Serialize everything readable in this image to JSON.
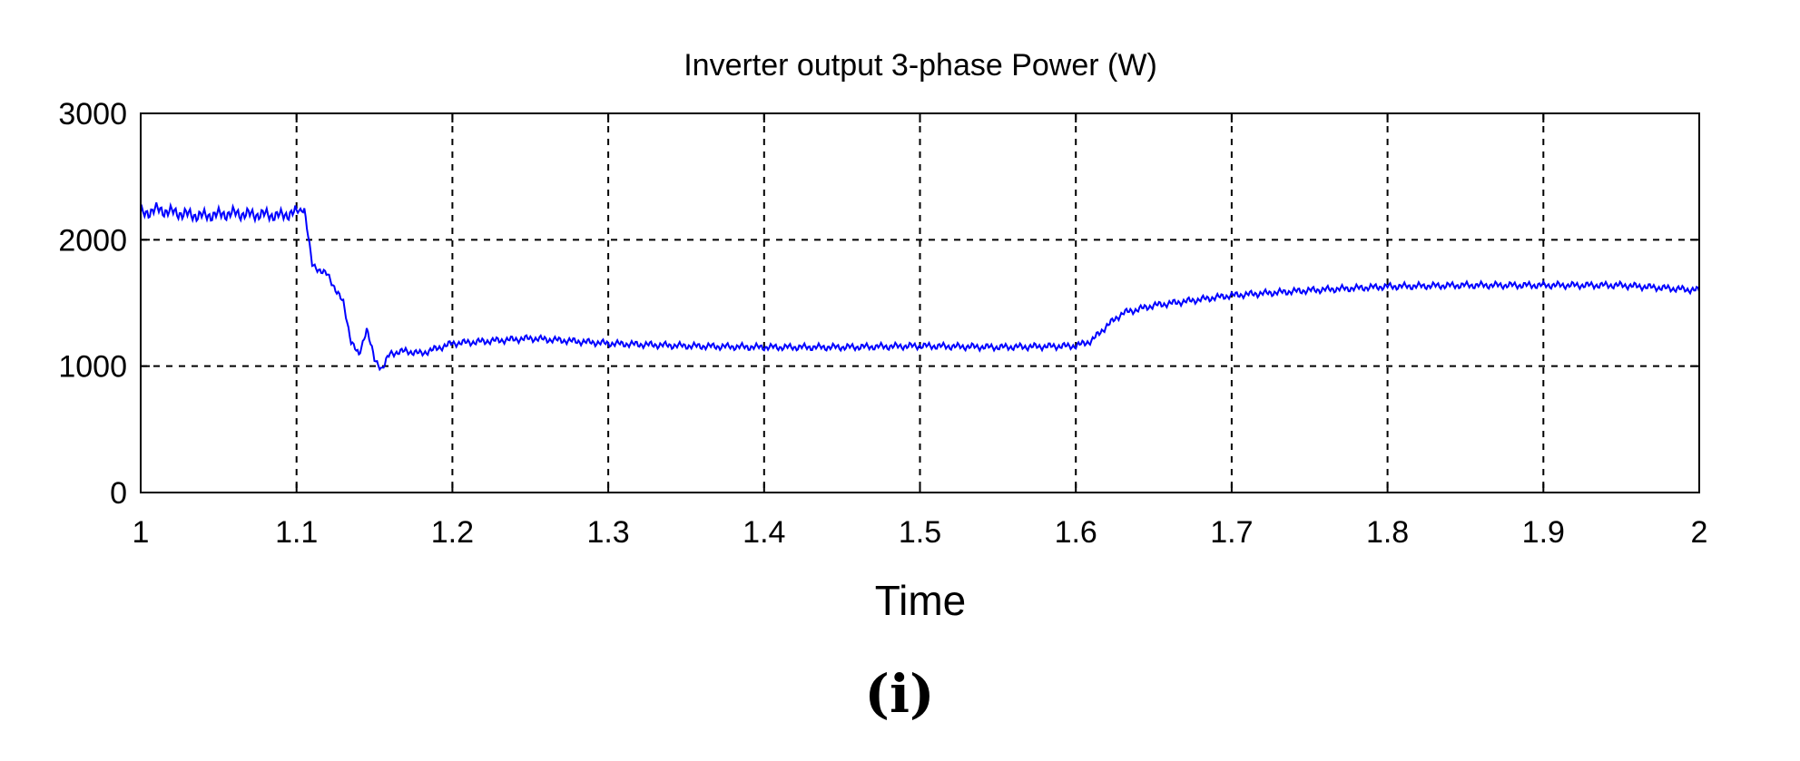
{
  "chart_data": {
    "type": "line",
    "title": "Inverter output 3-phase Power (W)",
    "xlabel": "Time",
    "ylabel": "",
    "panel_label": "(i)",
    "xlim": [
      1,
      2
    ],
    "ylim": [
      0,
      3000
    ],
    "xticks": [
      1,
      1.1,
      1.2,
      1.3,
      1.4,
      1.5,
      1.6,
      1.7,
      1.8,
      1.9,
      2
    ],
    "xtick_labels": [
      "1",
      "1.1",
      "1.2",
      "1.3",
      "1.4",
      "1.5",
      "1.6",
      "1.7",
      "1.8",
      "1.9",
      "2"
    ],
    "yticks": [
      0,
      1000,
      2000,
      3000
    ],
    "ytick_labels": [
      "0",
      "1000",
      "2000",
      "3000"
    ],
    "grid": true,
    "line_color": "#0000ff",
    "series": [
      {
        "x": [
          1.0,
          1.01,
          1.02,
          1.03,
          1.04,
          1.05,
          1.06,
          1.07,
          1.08,
          1.09,
          1.1,
          1.105,
          1.11,
          1.12,
          1.13,
          1.135,
          1.14,
          1.145,
          1.15,
          1.155,
          1.16,
          1.17,
          1.18,
          1.2,
          1.25,
          1.3,
          1.35,
          1.4,
          1.45,
          1.5,
          1.55,
          1.6,
          1.61,
          1.62,
          1.63,
          1.65,
          1.7,
          1.75,
          1.8,
          1.85,
          1.9,
          1.95,
          2.0
        ],
        "y": [
          2200,
          2240,
          2220,
          2200,
          2190,
          2200,
          2210,
          2200,
          2200,
          2190,
          2220,
          2250,
          1800,
          1720,
          1500,
          1200,
          1080,
          1300,
          1050,
          980,
          1100,
          1120,
          1100,
          1180,
          1220,
          1180,
          1160,
          1150,
          1150,
          1160,
          1150,
          1160,
          1200,
          1320,
          1420,
          1480,
          1560,
          1600,
          1630,
          1640,
          1640,
          1640,
          1600
        ]
      }
    ]
  }
}
